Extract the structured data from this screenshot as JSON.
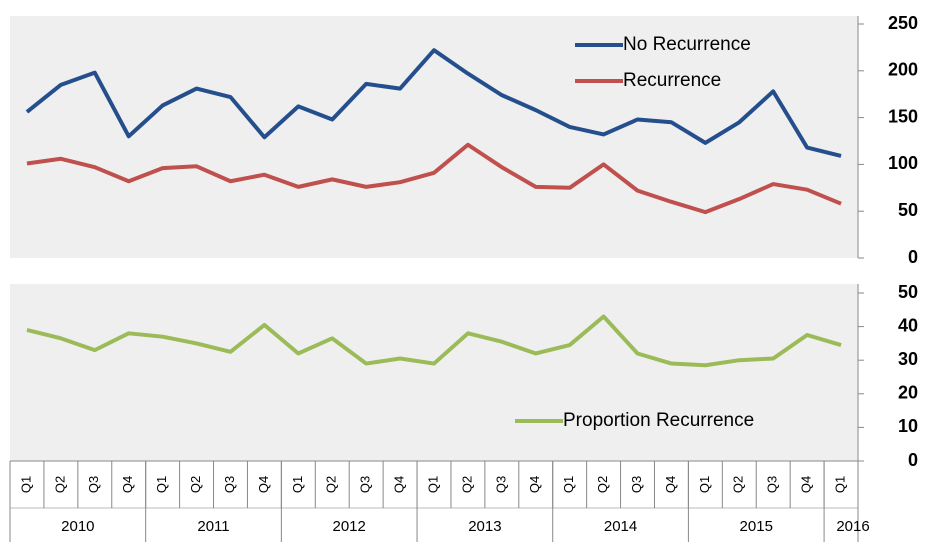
{
  "chart_data": [
    {
      "type": "line",
      "series": [
        {
          "name": "No Recurrence",
          "color": "#254f8c",
          "values": [
            156,
            185,
            198,
            130,
            163,
            181,
            172,
            129,
            162,
            148,
            186,
            181,
            222,
            197,
            174,
            158,
            140,
            132,
            148,
            145,
            123,
            145,
            178,
            118,
            109
          ]
        },
        {
          "name": "Recurrence",
          "color": "#c0504d",
          "values": [
            101,
            106,
            97,
            82,
            96,
            98,
            82,
            89,
            76,
            84,
            76,
            81,
            91,
            121,
            97,
            76,
            75,
            100,
            72,
            60,
            49,
            63,
            79,
            73,
            58
          ]
        }
      ],
      "ylim": [
        0,
        250
      ],
      "yticks": [
        0,
        50,
        100,
        150,
        200,
        250
      ],
      "legend": "upper right"
    },
    {
      "type": "line",
      "categories": [
        "Q1",
        "Q2",
        "Q3",
        "Q4",
        "Q1",
        "Q2",
        "Q3",
        "Q4",
        "Q1",
        "Q2",
        "Q3",
        "Q4",
        "Q1",
        "Q2",
        "Q3",
        "Q4",
        "Q1",
        "Q2",
        "Q3",
        "Q4",
        "Q1",
        "Q2",
        "Q3",
        "Q4",
        "Q1"
      ],
      "years": [
        "2010",
        "2011",
        "2012",
        "2013",
        "2014",
        "2015",
        "2016"
      ],
      "series": [
        {
          "name": "Proportion Recurrence",
          "color": "#9bbb59",
          "values": [
            39,
            36.5,
            33,
            38,
            37,
            35,
            32.5,
            40.5,
            32,
            36.5,
            29,
            30.5,
            29,
            38,
            35.5,
            32,
            34.5,
            43,
            32,
            29,
            28.5,
            30,
            30.5,
            37.5,
            34.5
          ]
        }
      ],
      "ylim": [
        0,
        50
      ],
      "yticks": [
        0,
        10,
        20,
        30,
        40,
        50
      ],
      "legend": "lower right"
    }
  ]
}
